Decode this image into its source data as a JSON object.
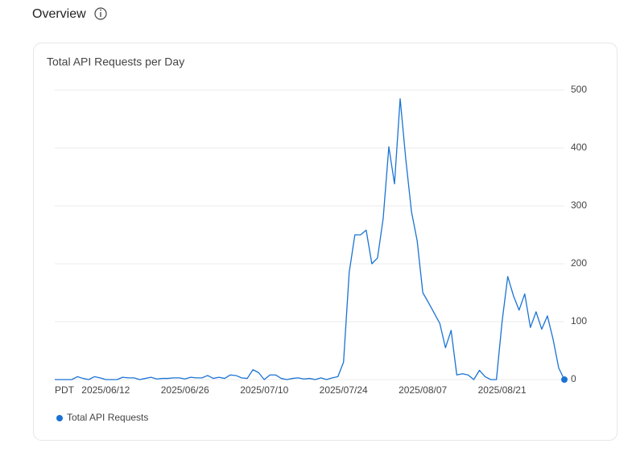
{
  "header": {
    "title": "Overview"
  },
  "chart_data": {
    "type": "line",
    "title": "Total API Requests per Day",
    "timezone": "PDT",
    "x": [
      "2025/06/03",
      "2025/06/04",
      "2025/06/05",
      "2025/06/06",
      "2025/06/07",
      "2025/06/08",
      "2025/06/09",
      "2025/06/10",
      "2025/06/11",
      "2025/06/12",
      "2025/06/13",
      "2025/06/14",
      "2025/06/15",
      "2025/06/16",
      "2025/06/17",
      "2025/06/18",
      "2025/06/19",
      "2025/06/20",
      "2025/06/21",
      "2025/06/22",
      "2025/06/23",
      "2025/06/24",
      "2025/06/25",
      "2025/06/26",
      "2025/06/27",
      "2025/06/28",
      "2025/06/29",
      "2025/06/30",
      "2025/07/01",
      "2025/07/02",
      "2025/07/03",
      "2025/07/04",
      "2025/07/05",
      "2025/07/06",
      "2025/07/07",
      "2025/07/08",
      "2025/07/09",
      "2025/07/10",
      "2025/07/11",
      "2025/07/12",
      "2025/07/13",
      "2025/07/14",
      "2025/07/15",
      "2025/07/16",
      "2025/07/17",
      "2025/07/18",
      "2025/07/19",
      "2025/07/20",
      "2025/07/21",
      "2025/07/22",
      "2025/07/23",
      "2025/07/24",
      "2025/07/25",
      "2025/07/26",
      "2025/07/27",
      "2025/07/28",
      "2025/07/29",
      "2025/07/30",
      "2025/07/31",
      "2025/08/01",
      "2025/08/02",
      "2025/08/03",
      "2025/08/04",
      "2025/08/05",
      "2025/08/06",
      "2025/08/07",
      "2025/08/08",
      "2025/08/09",
      "2025/08/10",
      "2025/08/11",
      "2025/08/12",
      "2025/08/13",
      "2025/08/14",
      "2025/08/15",
      "2025/08/16",
      "2025/08/17",
      "2025/08/18",
      "2025/08/19",
      "2025/08/20",
      "2025/08/21",
      "2025/08/22",
      "2025/08/23",
      "2025/08/24",
      "2025/08/25",
      "2025/08/26",
      "2025/08/27",
      "2025/08/28",
      "2025/08/29",
      "2025/08/30",
      "2025/08/31",
      "2025/09/01"
    ],
    "series": [
      {
        "name": "Total API Requests",
        "color": "#1a73d4",
        "values": [
          0,
          0,
          0,
          0,
          5,
          2,
          0,
          5,
          3,
          0,
          0,
          0,
          4,
          3,
          3,
          0,
          2,
          4,
          1,
          2,
          2,
          3,
          3,
          1,
          4,
          3,
          3,
          7,
          2,
          4,
          2,
          8,
          7,
          3,
          2,
          17,
          12,
          0,
          8,
          8,
          2,
          0,
          2,
          3,
          1,
          2,
          0,
          3,
          0,
          3,
          5,
          30,
          185,
          250,
          250,
          258,
          200,
          210,
          278,
          402,
          338,
          485,
          380,
          290,
          240,
          150,
          133,
          115,
          97,
          55,
          85,
          8,
          10,
          8,
          0,
          16,
          5,
          0,
          0,
          100,
          178,
          145,
          120,
          148,
          90,
          117,
          87,
          110,
          70,
          20,
          0
        ]
      }
    ],
    "xticks": [
      "2025/06/12",
      "2025/06/26",
      "2025/07/10",
      "2025/07/24",
      "2025/08/07",
      "2025/08/21"
    ],
    "ylim": [
      0,
      500
    ],
    "yticks": [
      0,
      100,
      200,
      300,
      400,
      500
    ],
    "grid": true,
    "legend": "bottom-left"
  }
}
